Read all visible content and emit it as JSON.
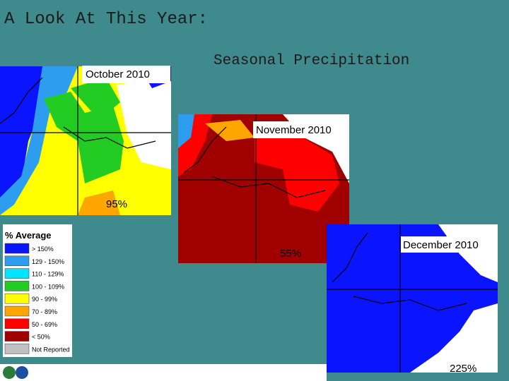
{
  "title": "A Look At This Year:",
  "subtitle": "Seasonal Precipitation",
  "maps": [
    {
      "label": "October 2010",
      "percent": "95%"
    },
    {
      "label": "November 2010",
      "percent": "55%"
    },
    {
      "label": "December 2010",
      "percent": "225%"
    }
  ],
  "legend": {
    "title": "% Average",
    "items": [
      {
        "label": "> 150%",
        "color": "#0a14ff"
      },
      {
        "label": "129 - 150%",
        "color": "#2d9df0"
      },
      {
        "label": "110 - 129%",
        "color": "#00e5ff"
      },
      {
        "label": "100 - 109%",
        "color": "#22cc22"
      },
      {
        "label": "90 - 99%",
        "color": "#ffff00"
      },
      {
        "label": "70 - 89%",
        "color": "#ffa500"
      },
      {
        "label": "50 - 69%",
        "color": "#ff0000"
      },
      {
        "label": "< 50%",
        "color": "#a00000"
      },
      {
        "label": "Not Reported",
        "color": "#c0c0c0"
      }
    ]
  }
}
